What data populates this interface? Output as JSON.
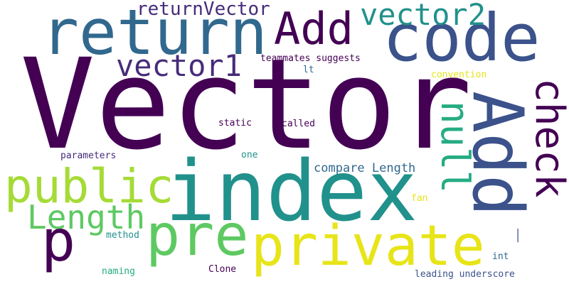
{
  "palette": {
    "dark_purple": "#440154",
    "indigo": "#472c7a",
    "blue_violet": "#3b528b",
    "steel_blue": "#31688e",
    "teal": "#21918c",
    "sea_green": "#25ac82",
    "green": "#3fbc73",
    "light_green": "#5ec962",
    "lime": "#a5db36",
    "yellow": "#e7e419"
  },
  "cloud": {
    "words": {
      "vector": "Vector",
      "index": "index",
      "return": "return",
      "code": "code",
      "add_big": "Add",
      "add_rotated": "Add",
      "check": "check",
      "vector1": "vector1",
      "vector2": "vector2",
      "return_vector": "returnVector",
      "private": "private",
      "public": "public",
      "pre": "pre",
      "p": "p",
      "length": "Length",
      "null": "null",
      "compare_length": "compare Length",
      "teammates_suggests": "teammates suggests",
      "lt": "lt",
      "convention": "convention",
      "static": "static",
      "called": "called",
      "one": "one",
      "parameters": "parameters",
      "fan": "fan",
      "method": "method",
      "int": "int",
      "naming": "naming",
      "clone": "Clone",
      "leading_underscore": "leading underscore",
      "bar": "_"
    }
  }
}
